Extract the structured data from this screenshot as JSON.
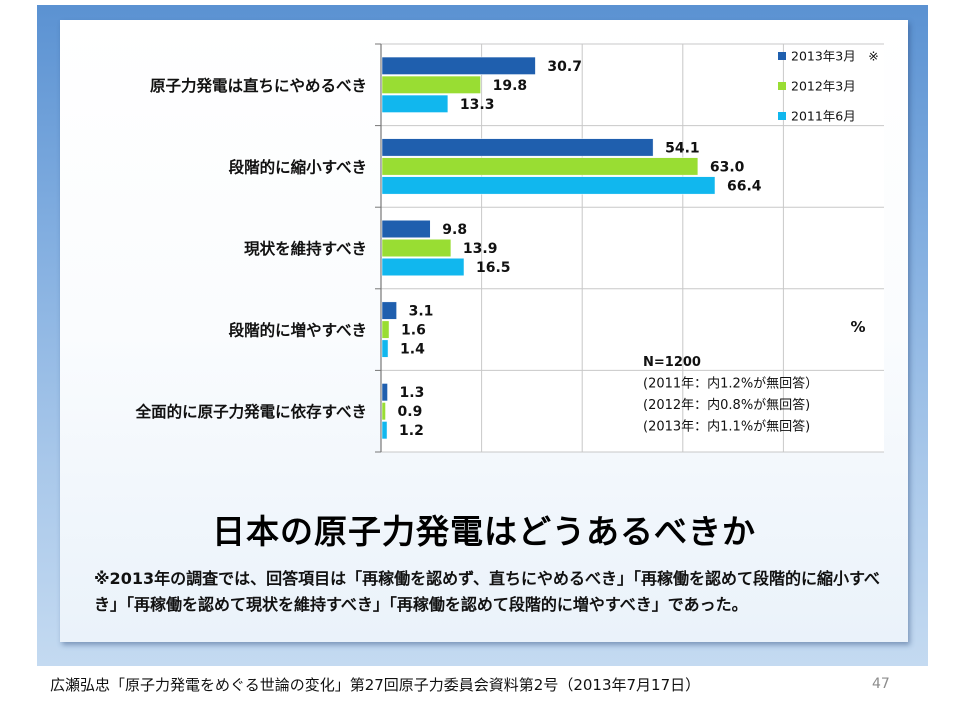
{
  "chart_data": {
    "type": "bar",
    "orientation": "horizontal",
    "categories": [
      "原子力発電は直ちにやめるべき",
      "段階的に縮小すべき",
      "現状を維持すべき",
      "段階的に増やすべき",
      "全面的に原子力発電に依存すべき"
    ],
    "series": [
      {
        "name": "2013年3月　※",
        "color": "#1f5fae",
        "values": [
          30.7,
          54.1,
          9.8,
          3.1,
          1.3
        ]
      },
      {
        "name": "2012年3月",
        "color": "#99dd33",
        "values": [
          19.8,
          63.0,
          13.9,
          1.6,
          0.9
        ]
      },
      {
        "name": "2011年6月",
        "color": "#11b7ee",
        "values": [
          13.3,
          66.4,
          16.5,
          1.4,
          1.2
        ]
      }
    ],
    "value_labels": [
      [
        "30.7",
        "54.1",
        "9.8",
        "3.1",
        "1.3"
      ],
      [
        "19.8",
        "63.0",
        "13.9",
        "1.6",
        "0.9"
      ],
      [
        "13.3",
        "66.4",
        "16.5",
        "1.4",
        "1.2"
      ]
    ],
    "xlim": [
      0,
      100
    ],
    "grid": true,
    "legend_position": "top-right",
    "unit": "%",
    "notes": [
      "N=1200",
      "(2011年：内1.2%が無回答）",
      "(2012年：内0.8%が無回答)",
      "(2013年：内1.1%が無回答)"
    ]
  },
  "title": "日本の原子力発電はどうあるべきか",
  "footnote": "※2013年の調査では、回答項目は「再稼働を認めず、直ちにやめるべき」「再稼働を認めて段階的に縮小すべき」「再稼働を認めて現状を維持すべき」「再稼働を認めて段階的に増やすべき」であった。",
  "source": "広瀬弘忠「原子力発電をめぐる世論の変化」第27回原子力委員会資料第2号（2013年7月17日）",
  "page_number": "47"
}
